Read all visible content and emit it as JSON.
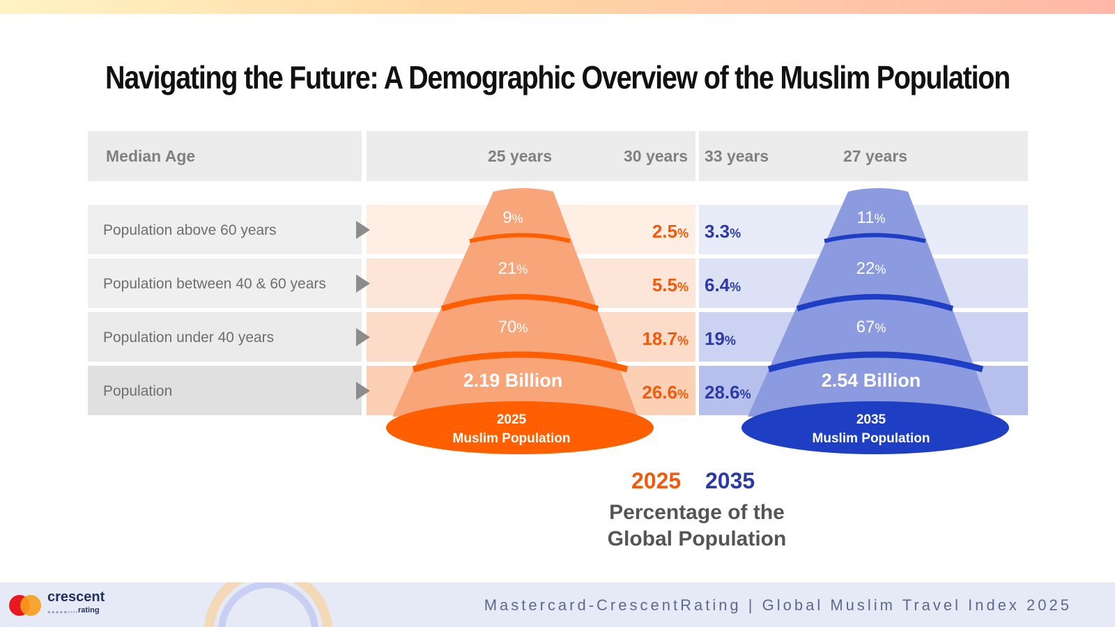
{
  "title": "Navigating the Future: A Demographic Overview of the Muslim Population",
  "header": {
    "median_label": "Median Age",
    "median_2025_cone": "25 years",
    "median_2025_global": "30 years",
    "median_2035_global": "33 years",
    "median_2035_cone": "27 years"
  },
  "rows": [
    {
      "label": "Population above 60 years"
    },
    {
      "label": "Population between 40 & 60 years"
    },
    {
      "label": "Population under 40 years"
    },
    {
      "label": "Population"
    }
  ],
  "colors": {
    "orange": "#f45a0a",
    "orange_cone": "#f9a57a",
    "orange_dark": "#ff5f00",
    "blue": "#2a3aa6",
    "blue_cone": "#8c9be0",
    "blue_dark": "#1e3fc4"
  },
  "chart_data": {
    "type": "table",
    "title": "Navigating the Future: A Demographic Overview of the Muslim Population",
    "columns": [
      "2025 Muslim Population",
      "2025 Percentage of the Global Population",
      "2035 Percentage of the Global Population",
      "2035 Muslim Population"
    ],
    "median_age": {
      "muslim_2025": "25 years",
      "global_2025": "30 years",
      "global_2035": "33 years",
      "muslim_2035": "27 years"
    },
    "series": [
      {
        "name": "2025 Muslim Population",
        "values": [
          "9%",
          "21%",
          "70%",
          "2.19 Billion"
        ]
      },
      {
        "name": "2025",
        "values": [
          "2.5%",
          "5.5%",
          "18.7%",
          "26.6%"
        ]
      },
      {
        "name": "2035",
        "values": [
          "3.3%",
          "6.4%",
          "19%",
          "28.6%"
        ]
      },
      {
        "name": "2035 Muslim Population",
        "values": [
          "11%",
          "22%",
          "67%",
          "2.54 Billion"
        ]
      }
    ],
    "categories": [
      "Population above 60 years",
      "Population between 40 & 60 years",
      "Population under 40 years",
      "Population"
    ]
  },
  "cone_2025": {
    "segments": [
      {
        "num": "9",
        "unit": "%"
      },
      {
        "num": "21",
        "unit": "%"
      },
      {
        "num": "70",
        "unit": "%"
      }
    ],
    "total": "2.19 Billion",
    "base_year": "2025",
    "base_label": "Muslim Population"
  },
  "cone_2035": {
    "segments": [
      {
        "num": "11",
        "unit": "%"
      },
      {
        "num": "22",
        "unit": "%"
      },
      {
        "num": "67",
        "unit": "%"
      }
    ],
    "total": "2.54 Billion",
    "base_year": "2035",
    "base_label": "Muslim Population"
  },
  "global_2025": [
    {
      "num": "2.5",
      "unit": "%"
    },
    {
      "num": "5.5",
      "unit": "%"
    },
    {
      "num": "18.7",
      "unit": "%"
    },
    {
      "num": "26.6",
      "unit": "%"
    }
  ],
  "global_2035": [
    {
      "num": "3.3",
      "unit": "%"
    },
    {
      "num": "6.4",
      "unit": "%"
    },
    {
      "num": "19",
      "unit": "%"
    },
    {
      "num": "28.6",
      "unit": "%"
    }
  ],
  "legend": {
    "year_a": "2025",
    "year_b": "2035",
    "caption_line1": "Percentage of the",
    "caption_line2": "Global Population"
  },
  "footer": {
    "logo_name": "crescent",
    "logo_sub": "rating",
    "credit": "Mastercard-CrescentRating | Global Muslim Travel Index 2025"
  }
}
